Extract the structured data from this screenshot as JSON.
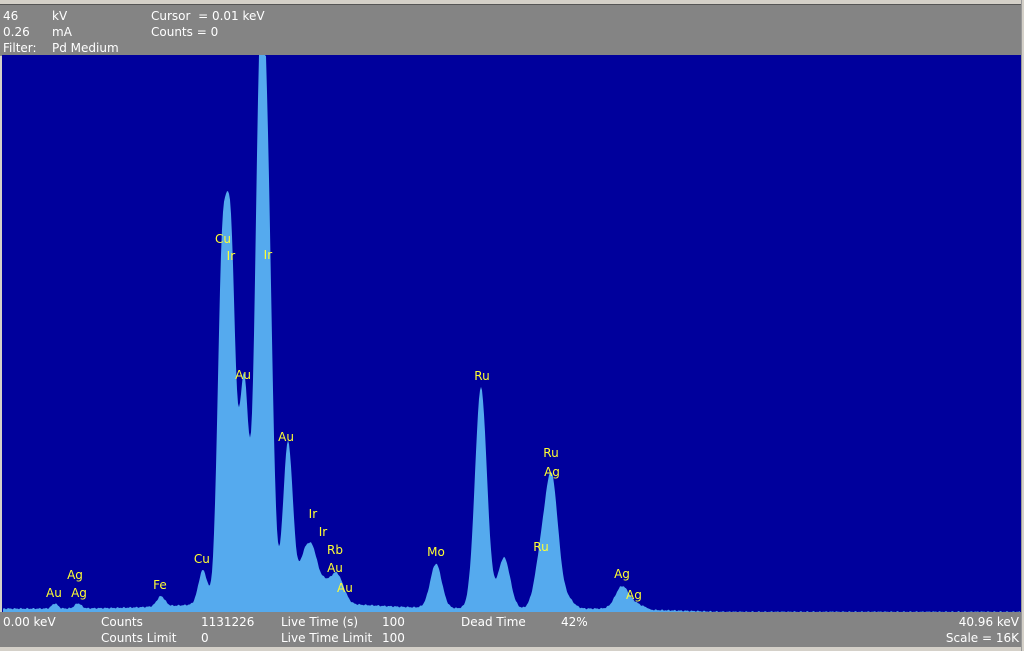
{
  "header": {
    "voltage_value": "46",
    "voltage_unit": "kV",
    "current_value": "0.26",
    "current_unit": "mA",
    "filter_label": "Filter:",
    "filter_value": "Pd Medium",
    "cursor": "Cursor  = 0.01 keV",
    "cursor_counts": "Counts = 0"
  },
  "footer": {
    "energy_min": "0.00 keV",
    "energy_max": "40.96 keV",
    "counts_label": "Counts",
    "counts_value": "1131226",
    "counts_limit_label": "Counts Limit",
    "counts_limit_value": "0",
    "live_time_label": "Live Time (s)",
    "live_time_value": "100",
    "live_time_limit_label": "Live Time Limit",
    "live_time_limit_value": "100",
    "dead_time_label": "Dead Time",
    "dead_time_value": "42%",
    "scale": "Scale = 16K"
  },
  "colors": {
    "plot_background": "#00009c",
    "spectrum_fill": "#55aaee",
    "label_color": "#ffff33",
    "panel": "#848484"
  },
  "chart_data": {
    "type": "area",
    "xlim": [
      0,
      40.96
    ],
    "ylim": [
      0,
      16384
    ],
    "xlabel": "",
    "ylabel": "",
    "grid": false,
    "background_counts": 100,
    "peaks": [
      {
        "energy": 2.09,
        "counts": 150
      },
      {
        "energy": 3.02,
        "counts": 150
      },
      {
        "energy": 6.36,
        "counts": 300
      },
      {
        "energy": 8.05,
        "counts": 1000
      },
      {
        "energy": 8.82,
        "counts": 9500
      },
      {
        "energy": 9.18,
        "counts": 10000
      },
      {
        "energy": 9.71,
        "counts": 6500
      },
      {
        "energy": 10.3,
        "counts": 7000
      },
      {
        "energy": 10.39,
        "counts": 8000
      },
      {
        "energy": 10.67,
        "counts": 10000
      },
      {
        "energy": 11.48,
        "counts": 4700
      },
      {
        "energy": 12.12,
        "counts": 1200
      },
      {
        "energy": 12.48,
        "counts": 1350
      },
      {
        "energy": 12.93,
        "counts": 550
      },
      {
        "energy": 13.37,
        "counts": 700
      },
      {
        "energy": 13.65,
        "counts": 350
      },
      {
        "energy": 17.44,
        "counts": 1300
      },
      {
        "energy": 19.25,
        "counts": 6500
      },
      {
        "energy": 20.18,
        "counts": 1500
      },
      {
        "energy": 21.67,
        "counts": 1450
      },
      {
        "energy": 22.11,
        "counts": 3650
      },
      {
        "energy": 22.71,
        "counts": 300
      },
      {
        "energy": 24.93,
        "counts": 650
      },
      {
        "energy": 25.49,
        "counts": 130
      }
    ],
    "labels": [
      {
        "text": "Au",
        "energy": 2.05
      },
      {
        "text": "Ag",
        "energy": 2.9
      },
      {
        "text": "Ag",
        "energy": 3.06
      },
      {
        "text": "Fe",
        "energy": 6.32
      },
      {
        "text": "Cu",
        "energy": 8.01
      },
      {
        "text": "Cu",
        "energy": 8.86
      },
      {
        "text": "Ir",
        "energy": 9.18
      },
      {
        "text": "Au",
        "energy": 9.67
      },
      {
        "text": "Ir",
        "energy": 10.67
      },
      {
        "text": "Au",
        "energy": 11.4
      },
      {
        "text": "Ir",
        "energy": 12.48
      },
      {
        "text": "Ir",
        "energy": 12.89
      },
      {
        "text": "Rb",
        "energy": 13.37
      },
      {
        "text": "Au",
        "energy": 13.37
      },
      {
        "text": "Au",
        "energy": 13.77
      },
      {
        "text": "Mo",
        "energy": 17.44
      },
      {
        "text": "Ru",
        "energy": 19.29
      },
      {
        "text": "Ru",
        "energy": 22.07
      },
      {
        "text": "Ag",
        "energy": 22.11
      },
      {
        "text": "Ru",
        "energy": 21.67
      },
      {
        "text": "Ag",
        "energy": 24.93
      },
      {
        "text": "Ag",
        "energy": 25.41
      }
    ]
  }
}
